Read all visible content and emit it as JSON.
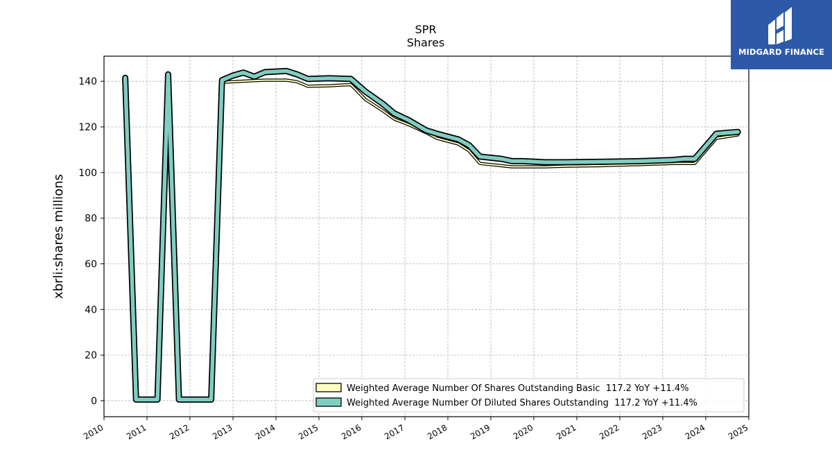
{
  "chart_data": {
    "type": "area",
    "title": "SPR",
    "subtitle": "Shares",
    "ylabel": "xbrli:shares millions",
    "xlabel": "",
    "xlim": [
      "2010-01-01",
      "2025-01-01"
    ],
    "ylim": [
      -7,
      151
    ],
    "yticks": [
      0,
      20,
      40,
      60,
      80,
      100,
      120,
      140
    ],
    "xticks": [
      "2010",
      "2011",
      "2012",
      "2013",
      "2014",
      "2015",
      "2016",
      "2017",
      "2018",
      "2019",
      "2020",
      "2021",
      "2022",
      "2023",
      "2024",
      "2025"
    ],
    "grid": true,
    "legend_position": "lower-right",
    "series": [
      {
        "name": "Weighted Average Number Of Shares Outstanding Basic  117.2 YoY +11.4%",
        "color": "#ffffbf",
        "points": [
          [
            "2010-06-30",
            141.0
          ],
          [
            "2010-09-30",
            0.0
          ],
          [
            "2010-12-31",
            0.0
          ],
          [
            "2011-03-31",
            0.0
          ],
          [
            "2011-06-30",
            142.5
          ],
          [
            "2011-09-30",
            0.0
          ],
          [
            "2011-12-31",
            0.0
          ],
          [
            "2012-03-31",
            0.0
          ],
          [
            "2012-06-30",
            0.0
          ],
          [
            "2012-09-30",
            139.5
          ],
          [
            "2012-12-31",
            139.8
          ],
          [
            "2013-06-30",
            140.3
          ],
          [
            "2013-09-30",
            140.5
          ],
          [
            "2014-03-31",
            140.5
          ],
          [
            "2014-06-30",
            139.8
          ],
          [
            "2014-09-30",
            137.8
          ],
          [
            "2015-03-31",
            138.0
          ],
          [
            "2015-06-30",
            138.3
          ],
          [
            "2015-09-30",
            138.5
          ],
          [
            "2016-01-31",
            132.0
          ],
          [
            "2016-06-30",
            127.0
          ],
          [
            "2016-09-30",
            123.5
          ],
          [
            "2017-01-31",
            121.0
          ],
          [
            "2017-06-30",
            117.5
          ],
          [
            "2017-09-30",
            115.0
          ],
          [
            "2018-03-31",
            112.5
          ],
          [
            "2018-06-30",
            109.5
          ],
          [
            "2018-09-30",
            104.0
          ],
          [
            "2019-03-31",
            103.0
          ],
          [
            "2019-06-30",
            102.5
          ],
          [
            "2019-09-30",
            102.5
          ],
          [
            "2020-03-31",
            102.5
          ],
          [
            "2020-09-30",
            102.8
          ],
          [
            "2021-06-30",
            103.0
          ],
          [
            "2022-06-30",
            103.5
          ],
          [
            "2023-03-31",
            104.0
          ],
          [
            "2023-06-30",
            104.0
          ],
          [
            "2023-09-30",
            104.0
          ],
          [
            "2024-03-31",
            115.0
          ],
          [
            "2024-09-30",
            116.5
          ]
        ]
      },
      {
        "name": "Weighted Average Number Of Diluted Shares Outstanding  117.2 YoY +11.4%",
        "color": "#80cdc1",
        "points": [
          [
            "2010-06-30",
            141.5
          ],
          [
            "2010-09-30",
            0.5
          ],
          [
            "2010-12-31",
            0.5
          ],
          [
            "2011-03-31",
            0.5
          ],
          [
            "2011-06-30",
            143.0
          ],
          [
            "2011-09-30",
            0.5
          ],
          [
            "2011-12-31",
            0.5
          ],
          [
            "2012-03-31",
            0.5
          ],
          [
            "2012-06-30",
            0.5
          ],
          [
            "2012-09-30",
            140.5
          ],
          [
            "2012-12-31",
            142.5
          ],
          [
            "2013-03-31",
            143.8
          ],
          [
            "2013-06-30",
            142.0
          ],
          [
            "2013-09-30",
            144.0
          ],
          [
            "2014-03-31",
            144.5
          ],
          [
            "2014-06-30",
            143.0
          ],
          [
            "2014-09-30",
            141.0
          ],
          [
            "2015-03-31",
            141.3
          ],
          [
            "2015-09-30",
            141.0
          ],
          [
            "2016-01-31",
            135.5
          ],
          [
            "2016-06-30",
            130.0
          ],
          [
            "2016-09-30",
            126.0
          ],
          [
            "2017-01-31",
            123.0
          ],
          [
            "2017-06-30",
            118.5
          ],
          [
            "2017-09-30",
            117.0
          ],
          [
            "2018-03-31",
            114.5
          ],
          [
            "2018-06-30",
            112.0
          ],
          [
            "2018-09-30",
            107.0
          ],
          [
            "2019-03-31",
            106.0
          ],
          [
            "2019-06-30",
            105.0
          ],
          [
            "2019-09-30",
            105.0
          ],
          [
            "2020-03-31",
            104.5
          ],
          [
            "2020-09-30",
            104.5
          ],
          [
            "2021-06-30",
            104.7
          ],
          [
            "2022-06-30",
            105.0
          ],
          [
            "2023-03-31",
            105.5
          ],
          [
            "2023-06-30",
            106.0
          ],
          [
            "2023-09-30",
            106.0
          ],
          [
            "2024-03-31",
            117.0
          ],
          [
            "2024-09-30",
            117.8
          ]
        ]
      }
    ]
  },
  "logo": {
    "text": "MIDGARD FINANCE",
    "background": "#2c5aa8"
  }
}
